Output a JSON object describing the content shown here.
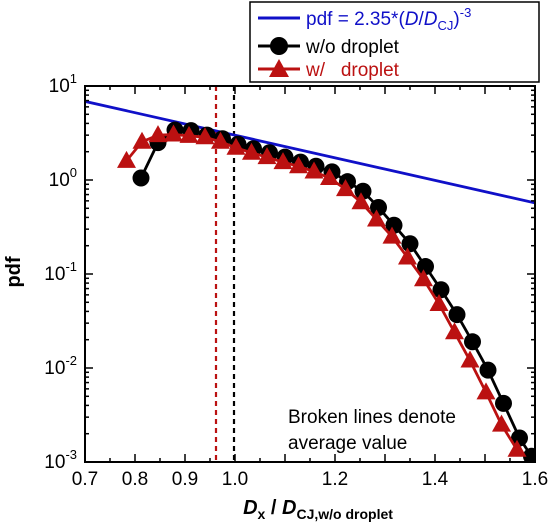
{
  "chart_data": {
    "type": "line",
    "xlabel": {
      "main": "D",
      "main_sub": "x",
      "div": " / ",
      "denom": "D",
      "denom_sub": "CJ,w/o droplet"
    },
    "ylabel": "pdf",
    "xlim": [
      0.7,
      1.6
    ],
    "ylim": [
      0.001,
      10
    ],
    "yscale": "log",
    "x_ticks": [
      0.7,
      0.8,
      0.9,
      1.0,
      1.1,
      1.2,
      1.3,
      1.4,
      1.5,
      1.6
    ],
    "x_tick_labels": [
      "0.7",
      "0.8",
      "0.9",
      "1.0",
      "",
      "1.2",
      "",
      "1.4",
      "",
      "1.6"
    ],
    "y_ticks": [
      {
        "value": 10,
        "base": "10",
        "exp": "1"
      },
      {
        "value": 1,
        "base": "10",
        "exp": "0"
      },
      {
        "value": 0.1,
        "base": "10",
        "exp": "-1"
      },
      {
        "value": 0.01,
        "base": "10",
        "exp": "-2"
      },
      {
        "value": 0.001,
        "base": "10",
        "exp": "-3"
      }
    ],
    "grid": false,
    "legend_position": "top-right",
    "series": [
      {
        "name": "pdf = 2.35*(D/DCJ)-3",
        "legend": {
          "pre": "pdf = 2.35*(",
          "d1": "D",
          "slash": "/",
          "d2": "D",
          "sub": "CJ",
          "close": ")",
          "sup": "-3"
        },
        "kind": "line",
        "color": "#1010c8",
        "marker": "none",
        "x": [
          0.7,
          1.6
        ],
        "y": [
          6.85,
          0.571
        ]
      },
      {
        "name": "w/o droplet",
        "kind": "line-marker",
        "color": "#000000",
        "marker": "circle",
        "x": [
          0.812,
          0.846,
          0.88,
          0.912,
          0.944,
          0.975,
          1.006,
          1.037,
          1.069,
          1.1,
          1.131,
          1.162,
          1.194,
          1.225,
          1.256,
          1.287,
          1.318,
          1.35,
          1.381,
          1.412,
          1.444,
          1.475,
          1.506,
          1.537,
          1.569,
          1.593
        ],
        "y": [
          1.05,
          2.5,
          3.4,
          3.35,
          3.0,
          2.75,
          2.4,
          2.15,
          1.95,
          1.75,
          1.55,
          1.4,
          1.22,
          0.96,
          0.76,
          0.51,
          0.33,
          0.21,
          0.12,
          0.068,
          0.037,
          0.019,
          0.0095,
          0.0042,
          0.0018,
          0.00115
        ]
      },
      {
        "name": "w/   droplet",
        "kind": "line-marker",
        "color": "#bb1111",
        "marker": "triangle",
        "x": [
          0.783,
          0.814,
          0.846,
          0.877,
          0.908,
          0.94,
          0.971,
          1.002,
          1.033,
          1.064,
          1.096,
          1.127,
          1.158,
          1.189,
          1.221,
          1.252,
          1.283,
          1.314,
          1.345,
          1.377,
          1.408,
          1.439,
          1.47,
          1.502,
          1.533,
          1.564
        ],
        "y": [
          1.6,
          2.55,
          3.0,
          3.05,
          2.95,
          2.85,
          2.55,
          2.2,
          1.95,
          1.75,
          1.55,
          1.4,
          1.23,
          1.05,
          0.8,
          0.58,
          0.38,
          0.25,
          0.15,
          0.088,
          0.048,
          0.024,
          0.012,
          0.0055,
          0.0025,
          0.00135
        ]
      }
    ],
    "reference_lines": [
      {
        "x": 0.962,
        "color": "#bb1111",
        "style": "dashed"
      },
      {
        "x": 0.998,
        "color": "#000000",
        "style": "dashed"
      }
    ],
    "annotation": [
      "Broken lines denote",
      "average value"
    ]
  }
}
